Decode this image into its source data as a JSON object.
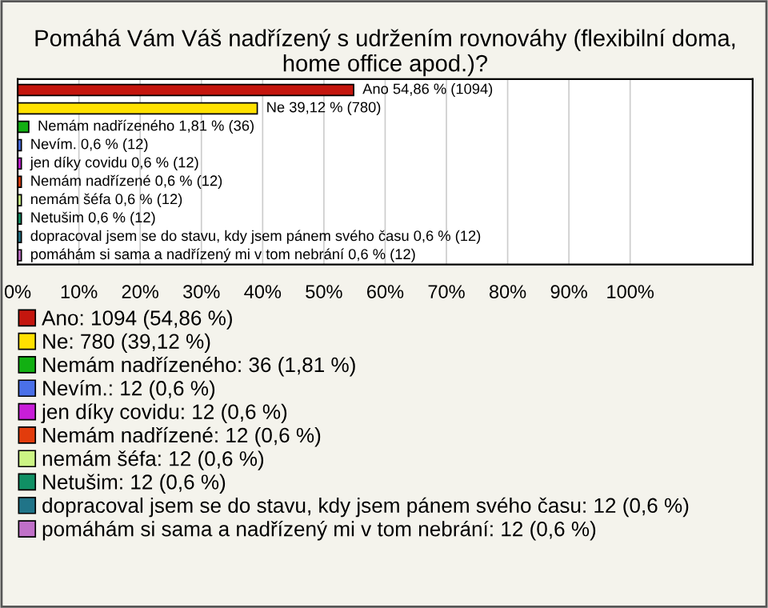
{
  "chart_data": {
    "type": "bar",
    "orientation": "horizontal",
    "title": "Pomáhá Vám Váš nadřízený s udržením rovnováhy (flexibilní doma, home office apod.)?",
    "categories": [
      null,
      null,
      null,
      null,
      null,
      null,
      null,
      null,
      null,
      null
    ],
    "series": [
      {
        "name": "Ano: 1094 (54,86 %)",
        "color": "#c4160e",
        "values": [
          54.86,
          null,
          null,
          null,
          null,
          null,
          null,
          null,
          null,
          null
        ],
        "value_labels": [
          "Ano 54,86 % (1094)",
          null,
          null,
          null,
          null,
          null,
          null,
          null,
          null,
          null
        ]
      },
      {
        "name": "Ne: 780 (39,12 %)",
        "color": "#ffe100",
        "values": [
          null,
          39.12,
          null,
          null,
          null,
          null,
          null,
          null,
          null,
          null
        ],
        "value_labels": [
          null,
          "Ne 39,12 % (780)",
          null,
          null,
          null,
          null,
          null,
          null,
          null,
          null
        ]
      },
      {
        "name": "Nemám nadřízeného: 36 (1,81 %)",
        "color": "#12b012",
        "values": [
          null,
          null,
          1.81,
          null,
          null,
          null,
          null,
          null,
          null,
          null
        ],
        "value_labels": [
          null,
          null,
          "Nemám nadřízeného 1,81 % (36)",
          null,
          null,
          null,
          null,
          null,
          null,
          null
        ]
      },
      {
        "name": "Nevím.: 12 (0,6 %)",
        "color": "#4a70e8",
        "values": [
          null,
          null,
          null,
          0.6,
          null,
          null,
          null,
          null,
          null,
          null
        ],
        "value_labels": [
          null,
          null,
          null,
          "Nevím. 0,6 % (12)",
          null,
          null,
          null,
          null,
          null,
          null
        ]
      },
      {
        "name": "jen díky covidu: 12 (0,6 %)",
        "color": "#c81ed8",
        "values": [
          null,
          null,
          null,
          null,
          0.6,
          null,
          null,
          null,
          null,
          null
        ],
        "value_labels": [
          null,
          null,
          null,
          null,
          "jen díky covidu 0,6 % (12)",
          null,
          null,
          null,
          null,
          null
        ]
      },
      {
        "name": "Nemám nadřízené: 12 (0,6 %)",
        "color": "#e23c0c",
        "values": [
          null,
          null,
          null,
          null,
          null,
          0.6,
          null,
          null,
          null,
          null
        ],
        "value_labels": [
          null,
          null,
          null,
          null,
          null,
          "Nemám nadřízené 0,6 % (12)",
          null,
          null,
          null,
          null
        ]
      },
      {
        "name": "nemám šéfa: 12 (0,6 %)",
        "color": "#ccf584",
        "values": [
          null,
          null,
          null,
          null,
          null,
          null,
          0.6,
          null,
          null,
          null
        ],
        "value_labels": [
          null,
          null,
          null,
          null,
          null,
          null,
          "nemám šéfa 0,6 % (12)",
          null,
          null,
          null
        ]
      },
      {
        "name": "Netušim: 12 (0,6 %)",
        "color": "#109064",
        "values": [
          null,
          null,
          null,
          null,
          null,
          null,
          null,
          0.6,
          null,
          null
        ],
        "value_labels": [
          null,
          null,
          null,
          null,
          null,
          null,
          null,
          "Netušim 0,6 % (12)",
          null,
          null
        ]
      },
      {
        "name": "dopracoval jsem se do stavu, kdy jsem pánem svého času: 12 (0,6 %)",
        "color": "#207488",
        "values": [
          null,
          null,
          null,
          null,
          null,
          null,
          null,
          null,
          0.6,
          null
        ],
        "value_labels": [
          null,
          null,
          null,
          null,
          null,
          null,
          null,
          null,
          "dopracoval jsem se do stavu, kdy jsem pánem svého času 0,6 % (12)",
          null
        ]
      },
      {
        "name": "pomáhám si sama a nadřízený mi v tom nebrání: 12 (0,6 %)",
        "color": "#c070c8",
        "values": [
          null,
          null,
          null,
          null,
          null,
          null,
          null,
          null,
          null,
          0.6
        ],
        "value_labels": [
          null,
          null,
          null,
          null,
          null,
          null,
          null,
          null,
          null,
          "pomáhám si sama a nadřízený mi v tom nebrání 0,6 % (12)"
        ]
      }
    ],
    "xlim": [
      0,
      120
    ],
    "xticks": [
      {
        "value": 0,
        "label": "0%"
      },
      {
        "value": 10,
        "label": "10%"
      },
      {
        "value": 20,
        "label": "20%"
      },
      {
        "value": 30,
        "label": "30%"
      },
      {
        "value": 40,
        "label": "40%"
      },
      {
        "value": 50,
        "label": "50%"
      },
      {
        "value": 60,
        "label": "60%"
      },
      {
        "value": 70,
        "label": "70%"
      },
      {
        "value": 80,
        "label": "80%"
      },
      {
        "value": 90,
        "label": "90%"
      },
      {
        "value": 100,
        "label": "100%"
      }
    ],
    "grid": "x",
    "legend": "bottom",
    "tick_labels": "x"
  }
}
